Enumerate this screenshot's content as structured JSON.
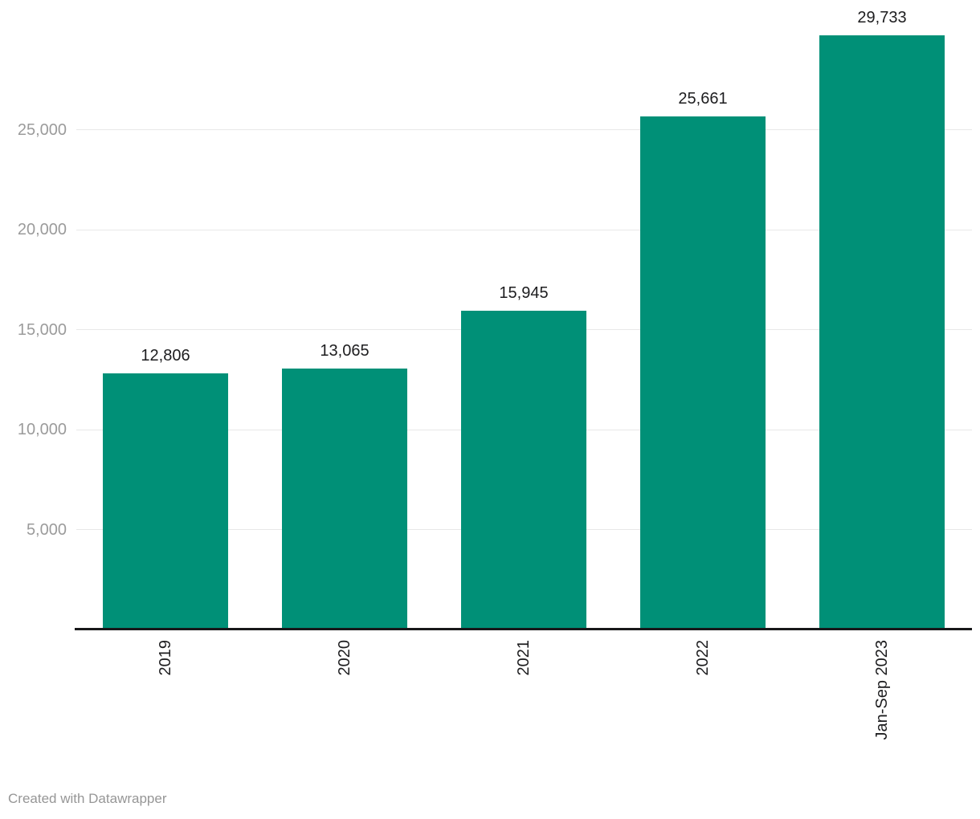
{
  "chart_data": {
    "type": "bar",
    "categories": [
      "2019",
      "2020",
      "2021",
      "2022",
      "Jan-Sep 2023"
    ],
    "values": [
      12806,
      13065,
      15945,
      25661,
      29733
    ],
    "value_labels": [
      "12,806",
      "13,065",
      "15,945",
      "25,661",
      "29,733"
    ],
    "y_ticks": [
      5000,
      10000,
      15000,
      20000,
      25000
    ],
    "y_tick_labels": [
      "5,000",
      "10,000",
      "15,000",
      "20,000",
      "25,000"
    ],
    "ylim": [
      0,
      30000
    ],
    "title": "",
    "xlabel": "",
    "ylabel": "",
    "grid": "horizontal gridlines on, drawn behind bars",
    "legend_position": "none",
    "x_label_orientation": "vertical, reading bottom to top"
  },
  "colors": {
    "bar": "#009077",
    "gridline": "#e8e8e8",
    "y_tick_text": "#9b9b9b",
    "value_label_text": "#1d1d1f",
    "x_label_text": "#1d1d1f",
    "axis_line": "#18181a",
    "footer_text": "#969696",
    "background": "#ffffff"
  },
  "footer": {
    "attribution": "Created with Datawrapper"
  }
}
